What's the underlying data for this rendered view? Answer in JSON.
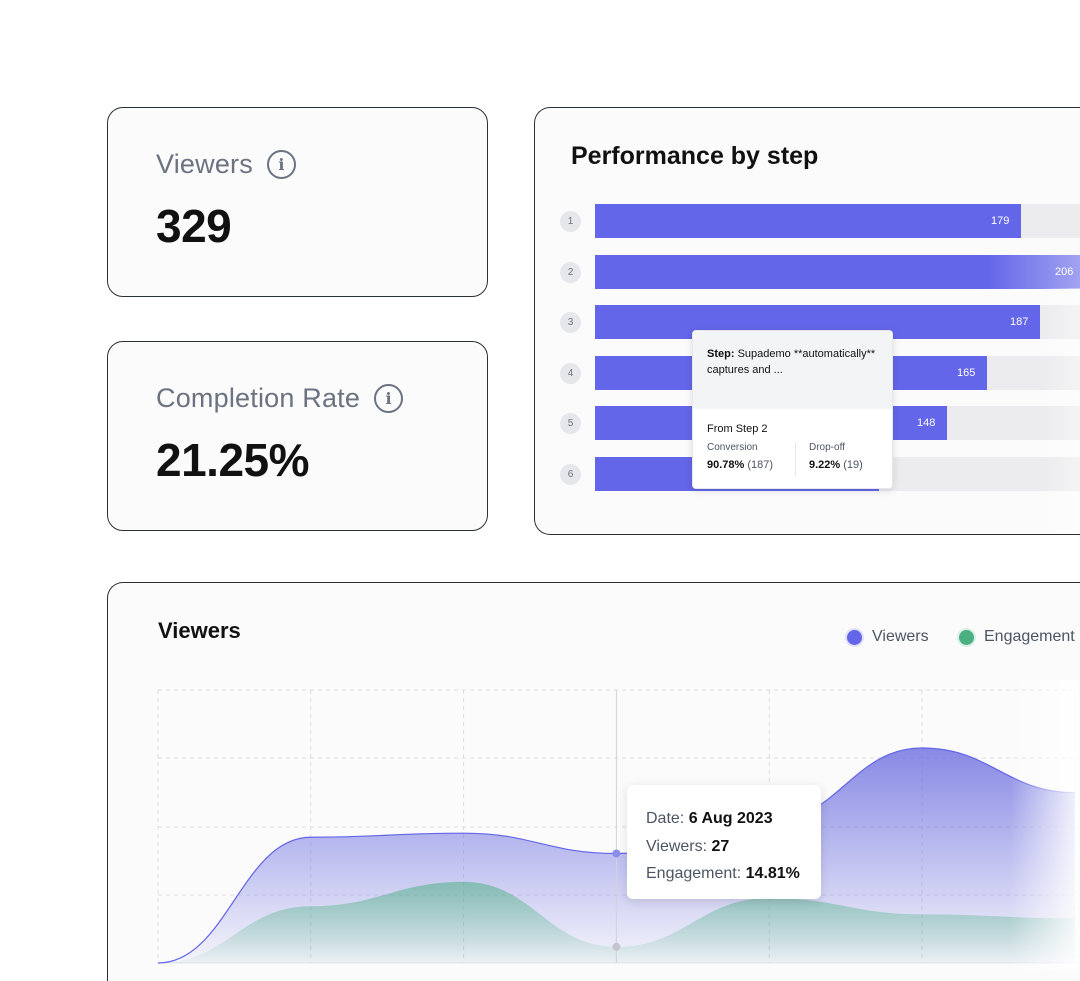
{
  "stats": {
    "viewers": {
      "label": "Viewers",
      "value": "329"
    },
    "completion": {
      "label": "Completion Rate",
      "value": "21.25%"
    }
  },
  "performance": {
    "title": "Performance by step",
    "steps": [
      {
        "num": "1",
        "value": "179",
        "fraction": 0.869
      },
      {
        "num": "2",
        "value": "206",
        "fraction": 1.0
      },
      {
        "num": "3",
        "value": "187",
        "fraction": 0.908
      },
      {
        "num": "4",
        "value": "165",
        "fraction": 0.801
      },
      {
        "num": "5",
        "value": "148",
        "fraction": 0.718
      },
      {
        "num": "6",
        "value": "",
        "fraction": 0.58
      }
    ],
    "tooltip": {
      "step_label": "Step:",
      "step_text": "Supademo **automatically** captures and ...",
      "from": "From Step 2",
      "conversion_label": "Conversion",
      "conversion_value": "90.78%",
      "conversion_count": "(187)",
      "dropoff_label": "Drop-off",
      "dropoff_value": "9.22%",
      "dropoff_count": "(19)"
    }
  },
  "viewers_chart": {
    "title": "Viewers",
    "legend": [
      {
        "name": "Viewers",
        "color": "#6366e8"
      },
      {
        "name": "Engagement",
        "color": "#4caf82"
      }
    ],
    "tooltip": {
      "date_label": "Date:",
      "date_value": "6 Aug 2023",
      "viewers_label": "Viewers:",
      "viewers_value": "27",
      "engagement_label": "Engagement:",
      "engagement_value": "14.81%"
    }
  },
  "chart_data": {
    "type": "area",
    "title": "Viewers",
    "xlabel": "",
    "ylabel": "",
    "grid": true,
    "legend_position": "top-right",
    "series": [
      {
        "name": "Viewers",
        "color": "#6366e8",
        "values": [
          0,
          31,
          32,
          27,
          35,
          53,
          42
        ]
      },
      {
        "name": "Engagement",
        "color": "#4caf82",
        "values": [
          0,
          14,
          20,
          4,
          16,
          12,
          11
        ]
      }
    ],
    "highlight": {
      "date": "6 Aug 2023",
      "viewers": 27,
      "engagement": "14.81%"
    }
  }
}
